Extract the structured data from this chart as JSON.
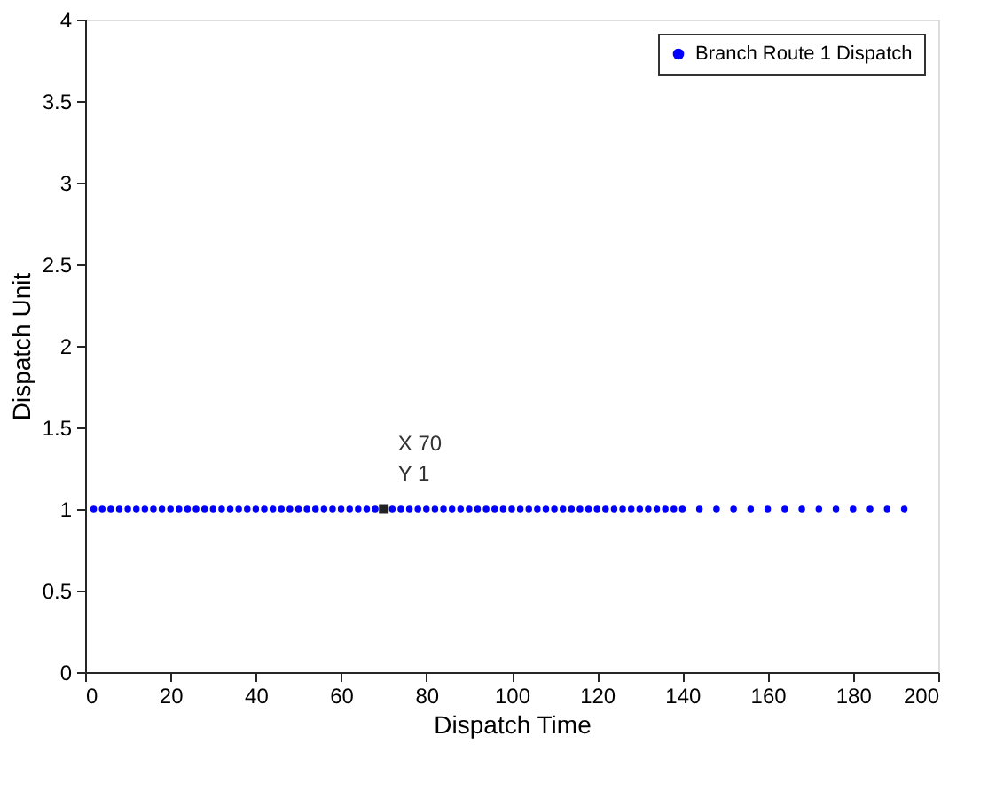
{
  "chart_data": {
    "type": "scatter",
    "xlabel": "Dispatch Time",
    "ylabel": "Dispatch Unit",
    "x": [
      2,
      4,
      6,
      8,
      10,
      12,
      14,
      16,
      18,
      20,
      22,
      24,
      26,
      28,
      30,
      32,
      34,
      36,
      38,
      40,
      42,
      44,
      46,
      48,
      50,
      52,
      54,
      56,
      58,
      60,
      62,
      64,
      66,
      68,
      70,
      72,
      74,
      76,
      78,
      80,
      82,
      84,
      86,
      88,
      90,
      92,
      94,
      96,
      98,
      100,
      102,
      104,
      106,
      108,
      110,
      112,
      114,
      116,
      118,
      120,
      122,
      124,
      126,
      128,
      130,
      132,
      134,
      136,
      138,
      140,
      144,
      148,
      152,
      156,
      160,
      164,
      168,
      172,
      176,
      180,
      184,
      188,
      192
    ],
    "series": [
      {
        "name": "Branch Route 1 Dispatch",
        "color": "#0000ff",
        "values": [
          1,
          1,
          1,
          1,
          1,
          1,
          1,
          1,
          1,
          1,
          1,
          1,
          1,
          1,
          1,
          1,
          1,
          1,
          1,
          1,
          1,
          1,
          1,
          1,
          1,
          1,
          1,
          1,
          1,
          1,
          1,
          1,
          1,
          1,
          1,
          1,
          1,
          1,
          1,
          1,
          1,
          1,
          1,
          1,
          1,
          1,
          1,
          1,
          1,
          1,
          1,
          1,
          1,
          1,
          1,
          1,
          1,
          1,
          1,
          1,
          1,
          1,
          1,
          1,
          1,
          1,
          1,
          1,
          1,
          1,
          1,
          1,
          1,
          1,
          1,
          1,
          1,
          1,
          1,
          1,
          1,
          1,
          1
        ]
      }
    ],
    "xlim": [
      0,
      200
    ],
    "xticks": [
      0,
      20,
      40,
      60,
      80,
      100,
      120,
      140,
      160,
      180,
      200
    ],
    "ylim": [
      0,
      4
    ],
    "yticks": [
      0,
      0.5,
      1,
      1.5,
      2,
      2.5,
      3,
      3.5,
      4
    ],
    "marker": "circle",
    "grid": false,
    "legend": "top right",
    "annotations": [
      {
        "text": "X 70\nY 1",
        "x": 70,
        "y": 1
      }
    ]
  }
}
